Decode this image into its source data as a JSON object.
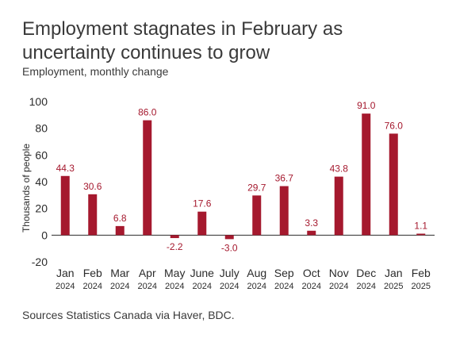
{
  "header": {
    "title": "Employment stagnates in February as uncertainty continues to grow",
    "subtitle": "Employment, monthly change"
  },
  "footer": {
    "source": "Sources Statistics Canada via Haver, BDC."
  },
  "colors": {
    "bar": "#A5192E",
    "data_label": "#A5192E",
    "axis_text": "#2b2b2b",
    "zero_line": "#2b2b2b"
  },
  "chart_data": {
    "type": "bar",
    "title": "Employment stagnates in February as uncertainty continues to grow",
    "subtitle": "Employment, monthly change",
    "xlabel": "",
    "ylabel": "Thousands of people",
    "ylim": [
      -20,
      100
    ],
    "yticks": [
      -20,
      0,
      20,
      40,
      60,
      80,
      100
    ],
    "grid": false,
    "legend": "none",
    "categories": [
      {
        "month": "Jan",
        "year": "2024"
      },
      {
        "month": "Feb",
        "year": "2024"
      },
      {
        "month": "Mar",
        "year": "2024"
      },
      {
        "month": "Apr",
        "year": "2024"
      },
      {
        "month": "May",
        "year": "2024"
      },
      {
        "month": "June",
        "year": "2024"
      },
      {
        "month": "July",
        "year": "2024"
      },
      {
        "month": "Aug",
        "year": "2024"
      },
      {
        "month": "Sep",
        "year": "2024"
      },
      {
        "month": "Oct",
        "year": "2024"
      },
      {
        "month": "Nov",
        "year": "2024"
      },
      {
        "month": "Dec",
        "year": "2024"
      },
      {
        "month": "Jan",
        "year": "2025"
      },
      {
        "month": "Feb",
        "year": "2025"
      }
    ],
    "values": [
      44.3,
      30.6,
      6.8,
      86.0,
      -2.2,
      17.6,
      -3.0,
      29.7,
      36.7,
      3.3,
      43.8,
      91.0,
      76.0,
      1.1
    ],
    "labels": [
      "44.3",
      "30.6",
      "6.8",
      "86.0",
      "-2.2",
      "17.6",
      "-3.0",
      "29.7",
      "36.7",
      "3.3",
      "43.8",
      "91.0",
      "76.0",
      "1.1"
    ]
  }
}
